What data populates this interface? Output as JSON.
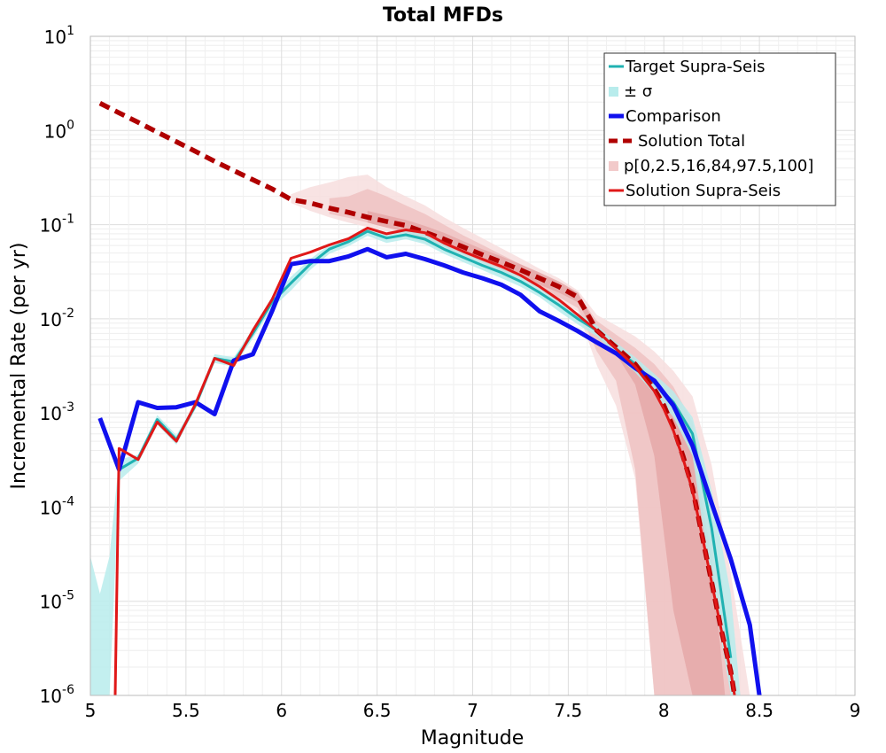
{
  "chart_data": {
    "type": "line",
    "title": "Total MFDs",
    "xlabel": "Magnitude",
    "ylabel": "Incremental Rate (per yr)",
    "xlim": [
      5,
      9
    ],
    "ylim": [
      1e-06,
      10
    ],
    "yscale": "log",
    "grid": true,
    "legend_position": "top-right",
    "x_ticks": [
      "5",
      "5.5",
      "6",
      "6.5",
      "7",
      "7.5",
      "8",
      "8.5",
      "9"
    ],
    "y_ticks": [
      {
        "base": "10",
        "exp": "1",
        "value": 10
      },
      {
        "base": "10",
        "exp": "0",
        "value": 1
      },
      {
        "base": "10",
        "exp": "-1",
        "value": 0.1
      },
      {
        "base": "10",
        "exp": "-2",
        "value": 0.01
      },
      {
        "base": "10",
        "exp": "-3",
        "value": 0.001
      },
      {
        "base": "10",
        "exp": "-4",
        "value": 0.0001
      },
      {
        "base": "10",
        "exp": "-5",
        "value": 1e-05
      },
      {
        "base": "10",
        "exp": "-6",
        "value": 1e-06
      }
    ],
    "legend": [
      {
        "label": "Target Supra-Seis",
        "color": "#20b2b2",
        "style": "line"
      },
      {
        "label": "± σ",
        "color": "#b8ecec",
        "style": "band"
      },
      {
        "label": "Comparison",
        "color": "#1010ee",
        "style": "thick"
      },
      {
        "label": "Solution Total",
        "color": "#b00000",
        "style": "dashed"
      },
      {
        "label": "p[0,2.5,16,84,97.5,100]",
        "color": "#f2caca",
        "style": "band"
      },
      {
        "label": "Solution Supra-Seis",
        "color": "#e01818",
        "style": "line"
      }
    ],
    "series": [
      {
        "name": "Target Supra-Seis",
        "color": "#20b2b2",
        "x": [
          5.15,
          5.25,
          5.35,
          5.45,
          5.55,
          5.65,
          5.75,
          5.85,
          5.95,
          6.05,
          6.15,
          6.25,
          6.35,
          6.45,
          6.55,
          6.65,
          6.75,
          6.85,
          6.95,
          7.05,
          7.15,
          7.25,
          7.35,
          7.45,
          7.55,
          7.65,
          7.75,
          7.85,
          7.95,
          8.05,
          8.15,
          8.25,
          8.35
        ],
        "y": [
          0.00025,
          0.00033,
          0.00085,
          0.00052,
          0.0012,
          0.0038,
          0.0035,
          0.007,
          0.015,
          0.024,
          0.038,
          0.055,
          0.066,
          0.085,
          0.072,
          0.078,
          0.07,
          0.055,
          0.045,
          0.037,
          0.031,
          0.025,
          0.019,
          0.014,
          0.01,
          0.0075,
          0.0048,
          0.0033,
          0.0021,
          0.0013,
          0.0006,
          6e-05,
          2.5e-06
        ]
      },
      {
        "name": "Comparison",
        "color": "#1010ee",
        "x": [
          5.05,
          5.15,
          5.25,
          5.35,
          5.45,
          5.55,
          5.65,
          5.75,
          5.85,
          5.95,
          6.05,
          6.15,
          6.25,
          6.35,
          6.45,
          6.55,
          6.65,
          6.75,
          6.85,
          6.95,
          7.05,
          7.15,
          7.25,
          7.35,
          7.45,
          7.55,
          7.65,
          7.75,
          7.85,
          7.95,
          8.05,
          8.15,
          8.25,
          8.35,
          8.45,
          8.5
        ],
        "y": [
          0.00088,
          0.00025,
          0.0013,
          0.00113,
          0.00115,
          0.0013,
          0.00097,
          0.0036,
          0.0042,
          0.012,
          0.038,
          0.041,
          0.041,
          0.046,
          0.055,
          0.045,
          0.049,
          0.043,
          0.037,
          0.031,
          0.027,
          0.023,
          0.018,
          0.012,
          0.0095,
          0.0074,
          0.0056,
          0.0043,
          0.003,
          0.0022,
          0.0012,
          0.00045,
          0.00011,
          2.8e-05,
          5.6e-06,
          1e-06
        ]
      },
      {
        "name": "Solution Total",
        "color": "#b00000",
        "x": [
          5.05,
          5.15,
          5.25,
          5.35,
          5.45,
          5.55,
          5.65,
          5.75,
          5.85,
          5.95,
          6.05,
          6.15,
          6.25,
          6.35,
          6.45,
          6.55,
          6.65,
          6.75,
          6.85,
          6.95,
          7.05,
          7.15,
          7.25,
          7.35,
          7.45,
          7.55,
          7.65,
          7.75,
          7.85,
          7.95,
          8.0,
          8.05,
          8.1,
          8.15,
          8.2,
          8.25,
          8.3,
          8.35,
          8.37
        ],
        "y": [
          1.95,
          1.54,
          1.22,
          0.96,
          0.76,
          0.6,
          0.47,
          0.375,
          0.3,
          0.24,
          0.185,
          0.17,
          0.15,
          0.135,
          0.12,
          0.108,
          0.098,
          0.083,
          0.07,
          0.058,
          0.048,
          0.04,
          0.033,
          0.027,
          0.022,
          0.017,
          0.0075,
          0.005,
          0.0033,
          0.0018,
          0.0012,
          0.0007,
          0.00035,
          0.00016,
          5e-05,
          1.6e-05,
          5e-06,
          1.8e-06,
          1e-06
        ]
      },
      {
        "name": "Solution Supra-Seis",
        "color": "#e01818",
        "x": [
          5.13,
          5.15,
          5.25,
          5.35,
          5.45,
          5.55,
          5.65,
          5.75,
          5.85,
          5.95,
          6.05,
          6.15,
          6.25,
          6.35,
          6.45,
          6.55,
          6.65,
          6.75,
          6.85,
          6.95,
          7.05,
          7.15,
          7.25,
          7.35,
          7.45,
          7.55,
          7.65,
          7.75,
          7.85,
          7.95,
          8.0,
          8.05,
          8.1,
          8.15,
          8.2,
          8.25,
          8.3,
          8.35,
          8.37
        ],
        "y": [
          1e-06,
          0.00042,
          0.00032,
          0.0008,
          0.0005,
          0.00125,
          0.0038,
          0.0032,
          0.0075,
          0.016,
          0.044,
          0.051,
          0.061,
          0.071,
          0.092,
          0.08,
          0.088,
          0.082,
          0.064,
          0.052,
          0.043,
          0.036,
          0.029,
          0.022,
          0.016,
          0.011,
          0.0075,
          0.0048,
          0.0031,
          0.0017,
          0.0011,
          0.00065,
          0.00033,
          0.00015,
          5e-05,
          1.6e-05,
          5e-06,
          1.8e-06,
          1e-06
        ]
      }
    ],
    "bands": [
      {
        "name": "± σ",
        "color": "#b8ecec",
        "x": [
          5.0,
          5.05,
          5.1,
          5.15,
          5.25,
          5.35,
          5.45,
          5.55,
          5.65,
          5.75,
          5.85,
          5.95,
          6.05,
          6.15,
          6.25,
          6.35,
          6.45,
          6.55,
          6.65,
          6.75,
          6.85,
          6.95,
          7.05,
          7.15,
          7.25,
          7.35,
          7.45,
          7.55,
          7.65,
          7.75,
          7.85,
          7.95,
          8.05,
          8.15,
          8.25,
          8.35,
          8.4
        ],
        "upper": [
          3e-05,
          1.2e-05,
          3e-05,
          0.00032,
          0.00036,
          0.00095,
          0.00058,
          0.0013,
          0.0042,
          0.0039,
          0.0078,
          0.017,
          0.028,
          0.043,
          0.061,
          0.073,
          0.094,
          0.08,
          0.087,
          0.078,
          0.061,
          0.05,
          0.041,
          0.034,
          0.028,
          0.021,
          0.016,
          0.0115,
          0.0085,
          0.0056,
          0.0039,
          0.0026,
          0.0017,
          0.0009,
          0.00015,
          1.2e-05,
          1e-06
        ],
        "lower": [
          1e-06,
          1e-06,
          1e-06,
          0.00019,
          0.00029,
          0.00075,
          0.00046,
          0.0011,
          0.0034,
          0.0031,
          0.0062,
          0.013,
          0.02,
          0.033,
          0.049,
          0.059,
          0.076,
          0.064,
          0.07,
          0.062,
          0.049,
          0.04,
          0.033,
          0.027,
          0.022,
          0.017,
          0.012,
          0.0087,
          0.0065,
          0.0041,
          0.0027,
          0.0016,
          0.0009,
          0.00035,
          1.5e-05,
          1e-06,
          1e-06
        ]
      }
    ],
    "percentile_bands": [
      {
        "name": "p[0,100]",
        "color": "#f7dede",
        "x": [
          6.05,
          6.15,
          6.25,
          6.35,
          6.45,
          6.55,
          6.65,
          6.75,
          6.85,
          6.95,
          7.05,
          7.15,
          7.25,
          7.35,
          7.45,
          7.55,
          7.65,
          7.75,
          7.85,
          7.95,
          8.05,
          8.15,
          8.25,
          8.35,
          8.45
        ],
        "upper": [
          0.21,
          0.25,
          0.28,
          0.32,
          0.34,
          0.25,
          0.2,
          0.16,
          0.12,
          0.092,
          0.072,
          0.056,
          0.044,
          0.034,
          0.027,
          0.02,
          0.011,
          0.0085,
          0.0065,
          0.0045,
          0.0028,
          0.0015,
          0.00028,
          2e-05,
          1e-06
        ],
        "lower": [
          0.17,
          0.14,
          0.12,
          0.105,
          0.094,
          0.084,
          0.075,
          0.064,
          0.052,
          0.043,
          0.035,
          0.029,
          0.024,
          0.019,
          0.015,
          0.012,
          0.0032,
          0.0012,
          0.0002,
          1e-06,
          1e-06,
          1e-06,
          1e-06,
          1e-06,
          1e-06
        ]
      },
      {
        "name": "p[2.5,97.5]",
        "color": "#efc2c2",
        "x": [
          6.25,
          6.35,
          6.45,
          6.55,
          6.65,
          6.75,
          6.85,
          6.95,
          7.05,
          7.15,
          7.25,
          7.35,
          7.45,
          7.55,
          7.65,
          7.75,
          7.85,
          7.95,
          8.05,
          8.15,
          8.25,
          8.35
        ],
        "upper": [
          0.19,
          0.2,
          0.24,
          0.2,
          0.16,
          0.13,
          0.1,
          0.077,
          0.061,
          0.048,
          0.038,
          0.03,
          0.024,
          0.018,
          0.0095,
          0.0068,
          0.0049,
          0.0033,
          0.0019,
          0.0008,
          8e-05,
          4e-06
        ],
        "lower": [
          0.13,
          0.118,
          0.105,
          0.093,
          0.083,
          0.071,
          0.058,
          0.048,
          0.039,
          0.032,
          0.027,
          0.021,
          0.017,
          0.013,
          0.0045,
          0.0022,
          0.00025,
          1e-06,
          1e-06,
          1e-06,
          1e-06,
          1e-06
        ]
      },
      {
        "name": "p[16,84]",
        "color": "#e5a8a8",
        "x": [
          6.45,
          6.55,
          6.65,
          6.75,
          6.85,
          6.95,
          7.05,
          7.15,
          7.25,
          7.35,
          7.45,
          7.55,
          7.65,
          7.75,
          7.85,
          7.95,
          8.05,
          8.15,
          8.25,
          8.32
        ],
        "upper": [
          0.14,
          0.125,
          0.112,
          0.097,
          0.082,
          0.067,
          0.055,
          0.046,
          0.038,
          0.031,
          0.025,
          0.019,
          0.0083,
          0.0056,
          0.0038,
          0.0023,
          0.0011,
          0.0004,
          3e-05,
          1e-06
        ],
        "lower": [
          0.105,
          0.093,
          0.084,
          0.07,
          0.059,
          0.049,
          0.041,
          0.034,
          0.028,
          0.023,
          0.019,
          0.015,
          0.0065,
          0.0042,
          0.002,
          0.00035,
          8e-06,
          1e-06,
          1e-06,
          1e-06
        ]
      }
    ]
  }
}
